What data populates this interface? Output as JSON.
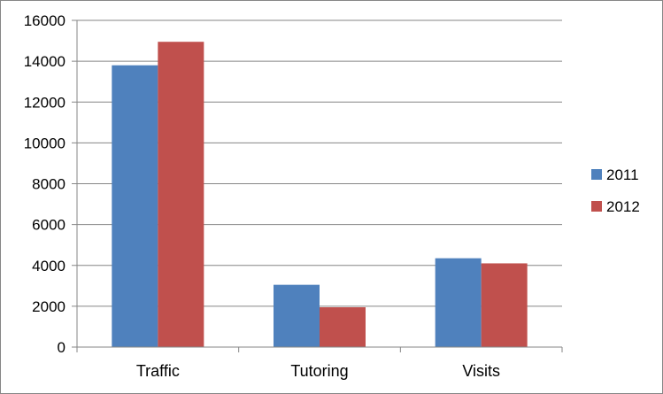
{
  "chart_data": {
    "type": "bar",
    "categories": [
      "Traffic",
      "Tutoring",
      "Visits"
    ],
    "series": [
      {
        "name": "2011",
        "color": "#4F81BD",
        "values": [
          13800,
          3050,
          4350
        ]
      },
      {
        "name": "2012",
        "color": "#C0504D",
        "values": [
          14950,
          1950,
          4100
        ]
      }
    ],
    "ylim": [
      0,
      16000
    ],
    "yticks": [
      "0",
      "2000",
      "4000",
      "6000",
      "8000",
      "10000",
      "12000",
      "14000",
      "16000"
    ],
    "grid": true,
    "legend_position": "right"
  }
}
